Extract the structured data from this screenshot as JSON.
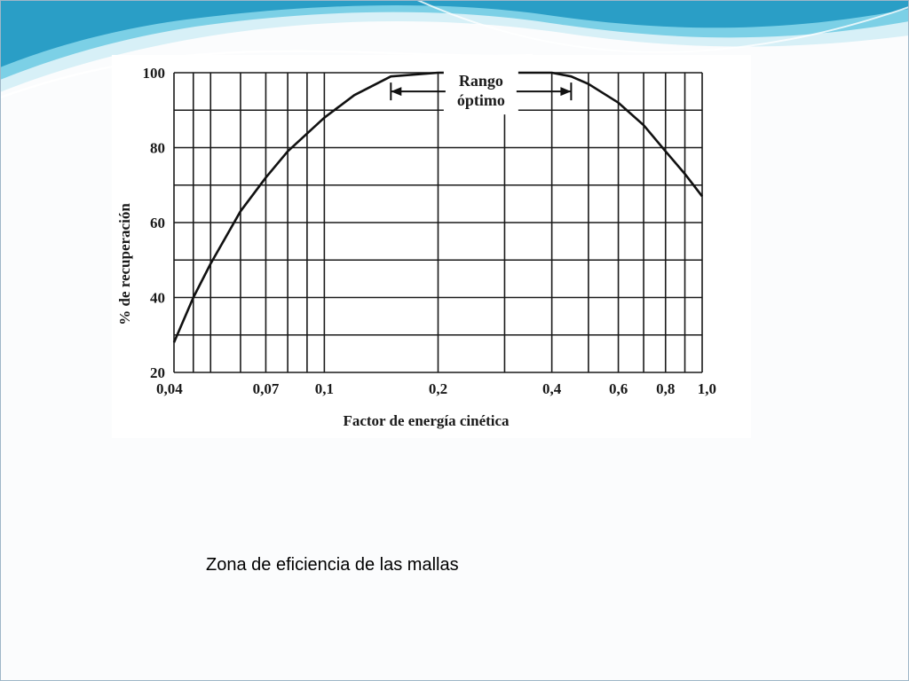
{
  "slide": {
    "caption": "Zona de eficiencia de las mallas",
    "theme_colors": {
      "wave_dark": "#2a9ec6",
      "wave_mid": "#7cd0e6",
      "wave_light": "#d7f0f7",
      "border": "#9fb7c8"
    }
  },
  "chart_data": {
    "type": "line",
    "xlabel": "Factor de energía cinética",
    "ylabel": "% de recuperación",
    "x_scale": "log",
    "xlim": [
      0.04,
      1.0
    ],
    "ylim": [
      20,
      100
    ],
    "x_ticks": [
      {
        "value": 0.04,
        "label": "0,04"
      },
      {
        "value": 0.07,
        "label": "0,07"
      },
      {
        "value": 0.1,
        "label": "0,1"
      },
      {
        "value": 0.2,
        "label": "0,2"
      },
      {
        "value": 0.4,
        "label": "0,4"
      },
      {
        "value": 0.6,
        "label": "0,6"
      },
      {
        "value": 0.8,
        "label": "0,8"
      },
      {
        "value": 1.0,
        "label": "1,0"
      }
    ],
    "y_ticks": [
      {
        "value": 100,
        "label": "100"
      },
      {
        "value": 80,
        "label": "80"
      },
      {
        "value": 60,
        "label": "60"
      },
      {
        "value": 40,
        "label": "40"
      },
      {
        "value": 20,
        "label": "20"
      }
    ],
    "x_gridlines": [
      0.04,
      0.045,
      0.05,
      0.06,
      0.07,
      0.08,
      0.09,
      0.1,
      0.2,
      0.3,
      0.4,
      0.5,
      0.6,
      0.7,
      0.8,
      0.9,
      1.0
    ],
    "y_gridlines": [
      20,
      30,
      40,
      50,
      60,
      70,
      80,
      90,
      100
    ],
    "grid": true,
    "series": [
      {
        "x": [
          0.04,
          0.045,
          0.05,
          0.06,
          0.07,
          0.08,
          0.1,
          0.12,
          0.15,
          0.2,
          0.25,
          0.3,
          0.35,
          0.4,
          0.45,
          0.5,
          0.6,
          0.7,
          0.8,
          0.9,
          1.0
        ],
        "y": [
          28,
          40,
          49,
          63,
          72,
          79,
          88,
          94,
          99,
          100,
          100,
          100,
          100,
          100,
          99,
          97,
          92,
          86,
          79,
          73,
          67
        ]
      }
    ],
    "annotations": [
      {
        "text_lines": [
          "Rango",
          "óptimo"
        ],
        "range": [
          0.15,
          0.45
        ],
        "y": 95
      }
    ]
  }
}
